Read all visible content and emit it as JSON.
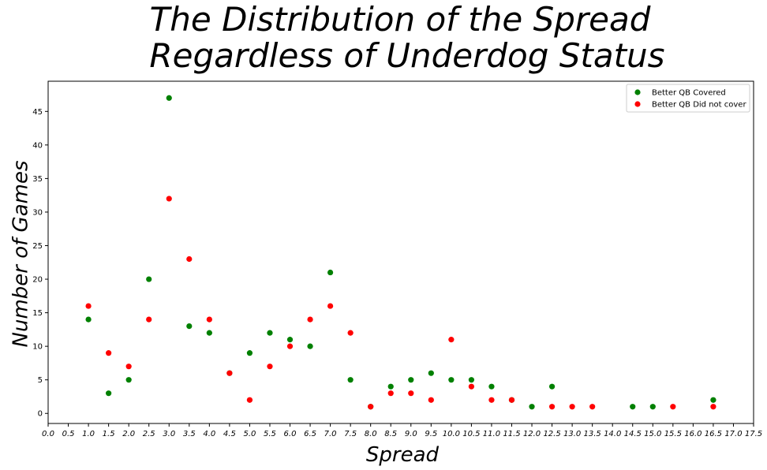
{
  "chart_data": {
    "type": "scatter",
    "title_lines": [
      "The Distribution of the Spread",
      "Regardless of Underdog Status"
    ],
    "xlabel": "Spread",
    "ylabel": "Number of Games",
    "xlim": [
      0,
      17.5
    ],
    "ylim": [
      -1.5,
      49.5
    ],
    "xticks": [
      0.0,
      0.5,
      1.0,
      1.5,
      2.0,
      2.5,
      3.0,
      3.5,
      4.0,
      4.5,
      5.0,
      5.5,
      6.0,
      6.5,
      7.0,
      7.5,
      8.0,
      8.5,
      9.0,
      9.5,
      10.0,
      10.5,
      11.0,
      11.5,
      12.0,
      12.5,
      13.0,
      13.5,
      14.0,
      14.5,
      15.0,
      15.5,
      16.0,
      16.5,
      17.0,
      17.5
    ],
    "yticks": [
      0,
      5,
      10,
      15,
      20,
      25,
      30,
      35,
      40,
      45
    ],
    "grid": false,
    "legend_position": "top-right",
    "series": [
      {
        "name": "Better QB Covered",
        "color": "#008000",
        "points": [
          [
            1.0,
            14
          ],
          [
            1.5,
            3
          ],
          [
            2.0,
            5
          ],
          [
            2.5,
            20
          ],
          [
            3.0,
            47
          ],
          [
            3.5,
            13
          ],
          [
            4.0,
            12
          ],
          [
            4.5,
            6
          ],
          [
            5.0,
            9
          ],
          [
            5.5,
            12
          ],
          [
            6.0,
            11
          ],
          [
            6.5,
            10
          ],
          [
            7.0,
            21
          ],
          [
            7.5,
            5
          ],
          [
            8.0,
            1
          ],
          [
            8.5,
            4
          ],
          [
            9.0,
            5
          ],
          [
            9.5,
            6
          ],
          [
            10.0,
            5
          ],
          [
            10.5,
            5
          ],
          [
            11.0,
            4
          ],
          [
            11.5,
            2
          ],
          [
            12.0,
            1
          ],
          [
            12.5,
            4
          ],
          [
            14.5,
            1
          ],
          [
            15.0,
            1
          ],
          [
            16.5,
            2
          ]
        ]
      },
      {
        "name": "Better QB Did not cover",
        "color": "#ff0000",
        "points": [
          [
            1.0,
            16
          ],
          [
            1.5,
            9
          ],
          [
            2.0,
            7
          ],
          [
            2.5,
            14
          ],
          [
            3.0,
            32
          ],
          [
            3.5,
            23
          ],
          [
            4.0,
            14
          ],
          [
            4.5,
            6
          ],
          [
            5.0,
            2
          ],
          [
            5.5,
            7
          ],
          [
            6.0,
            10
          ],
          [
            6.5,
            14
          ],
          [
            7.0,
            16
          ],
          [
            7.5,
            12
          ],
          [
            8.0,
            1
          ],
          [
            8.5,
            3
          ],
          [
            9.0,
            3
          ],
          [
            9.5,
            2
          ],
          [
            10.0,
            11
          ],
          [
            10.5,
            4
          ],
          [
            11.0,
            2
          ],
          [
            11.5,
            2
          ],
          [
            12.5,
            1
          ],
          [
            13.0,
            1
          ],
          [
            13.5,
            1
          ],
          [
            15.5,
            1
          ],
          [
            16.5,
            1
          ]
        ]
      }
    ]
  }
}
